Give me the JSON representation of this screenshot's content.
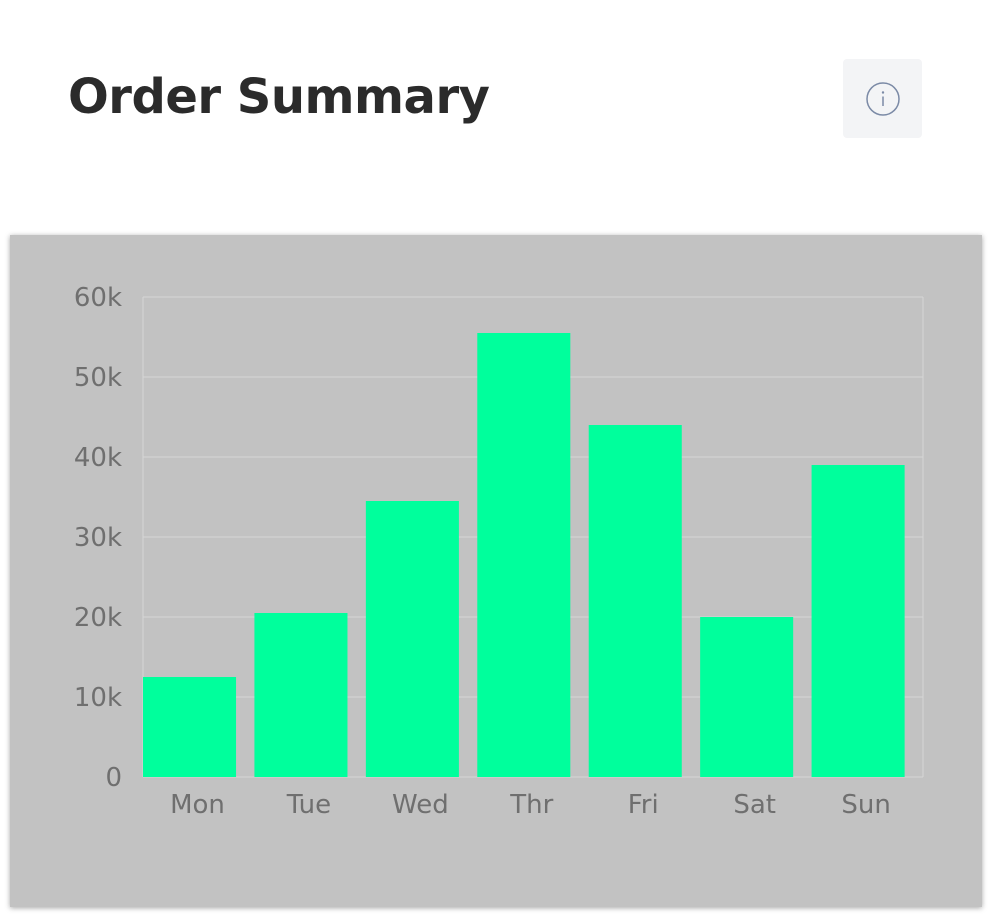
{
  "header": {
    "title": "Order Summary",
    "info_icon": "info-circle-icon"
  },
  "colors": {
    "bar": "#00FF9C",
    "card_background": "#C2C2C2",
    "grid": "#D6D6D6",
    "tick_text": "#6F6F6F"
  },
  "chart_data": {
    "type": "bar",
    "categories": [
      "Mon",
      "Tue",
      "Wed",
      "Thr",
      "Fri",
      "Sat",
      "Sun"
    ],
    "values": [
      12500,
      20500,
      34500,
      55500,
      44000,
      20000,
      39000
    ],
    "ylim": [
      0,
      60000
    ],
    "yticks": [
      0,
      10000,
      20000,
      30000,
      40000,
      50000,
      60000
    ],
    "ytick_labels": [
      "0",
      "10k",
      "20k",
      "30k",
      "40k",
      "50k",
      "60k"
    ],
    "grid": true,
    "legend": "none"
  }
}
